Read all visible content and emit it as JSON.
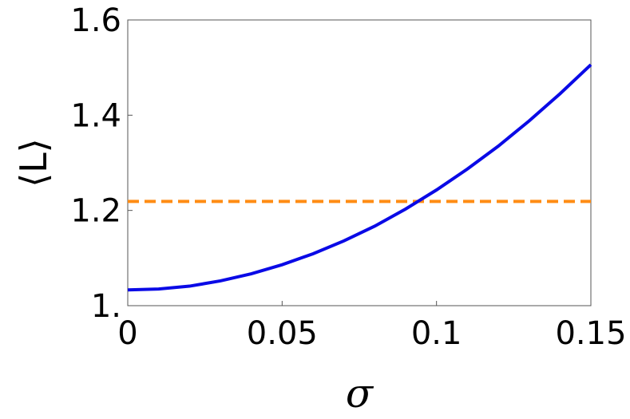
{
  "chart_data": {
    "type": "line",
    "xlabel": "σ",
    "ylabel": "⟨L⟩",
    "x": [
      0,
      0.01,
      0.02,
      0.03,
      0.04,
      0.05,
      0.06,
      0.07,
      0.08,
      0.09,
      0.1,
      0.11,
      0.12,
      0.13,
      0.14,
      0.15
    ],
    "series": [
      {
        "color": "#0a0ae6",
        "values": [
          1.033,
          1.035,
          1.041,
          1.052,
          1.067,
          1.086,
          1.109,
          1.136,
          1.167,
          1.203,
          1.243,
          1.287,
          1.335,
          1.388,
          1.445,
          1.506
        ]
      }
    ],
    "hlines": [
      {
        "value": 1.219,
        "color": "#ff8c14",
        "dashed": true
      }
    ],
    "xlim": [
      0,
      0.15
    ],
    "xticks": [
      0,
      0.05,
      0.1,
      0.15
    ],
    "ylim": [
      1,
      1.6
    ],
    "yticks": [
      {
        "value": 1,
        "label": "1."
      },
      1.2,
      1.4,
      1.6
    ]
  }
}
